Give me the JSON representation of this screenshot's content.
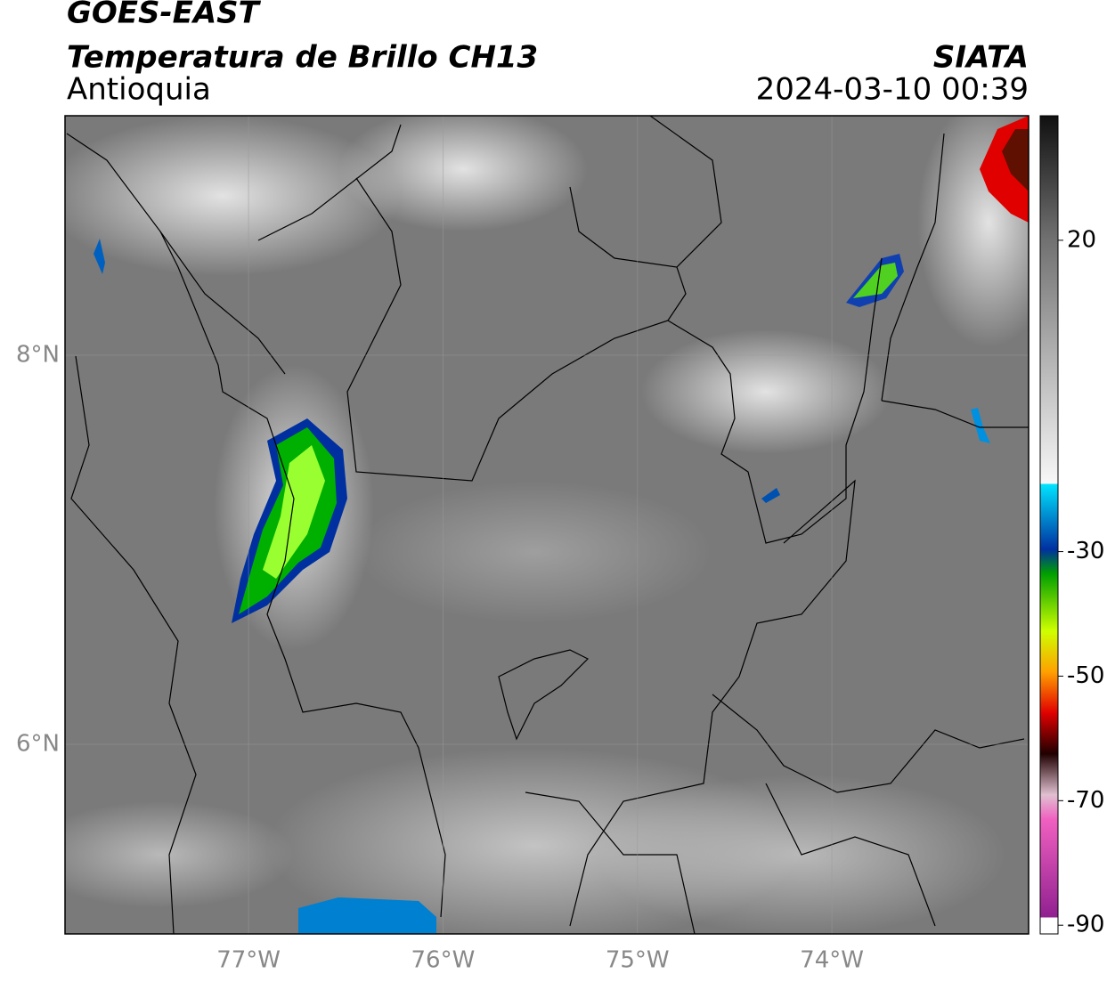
{
  "header": {
    "satellite": "GOES-EAST",
    "product": "Temperatura de Brillo CH13",
    "region": "Antioquia",
    "source": "SIATA",
    "datetime": "2024-03-10 00:39"
  },
  "map": {
    "xlim": [
      -77.944,
      -72.988
    ],
    "ylim": [
      5.025,
      9.231
    ],
    "lat_ticks": [
      {
        "value": 8,
        "label": "8°N"
      },
      {
        "value": 6,
        "label": "6°N"
      }
    ],
    "lon_ticks": [
      {
        "value": -77,
        "label": "77°W"
      },
      {
        "value": -76,
        "label": "76°W"
      },
      {
        "value": -75,
        "label": "75°W"
      },
      {
        "value": -74,
        "label": "74°W"
      }
    ]
  },
  "colorbar": {
    "lim": [
      -91.4,
      40
    ],
    "ticks": [
      20,
      -30,
      -50,
      -70,
      -90
    ]
  }
}
